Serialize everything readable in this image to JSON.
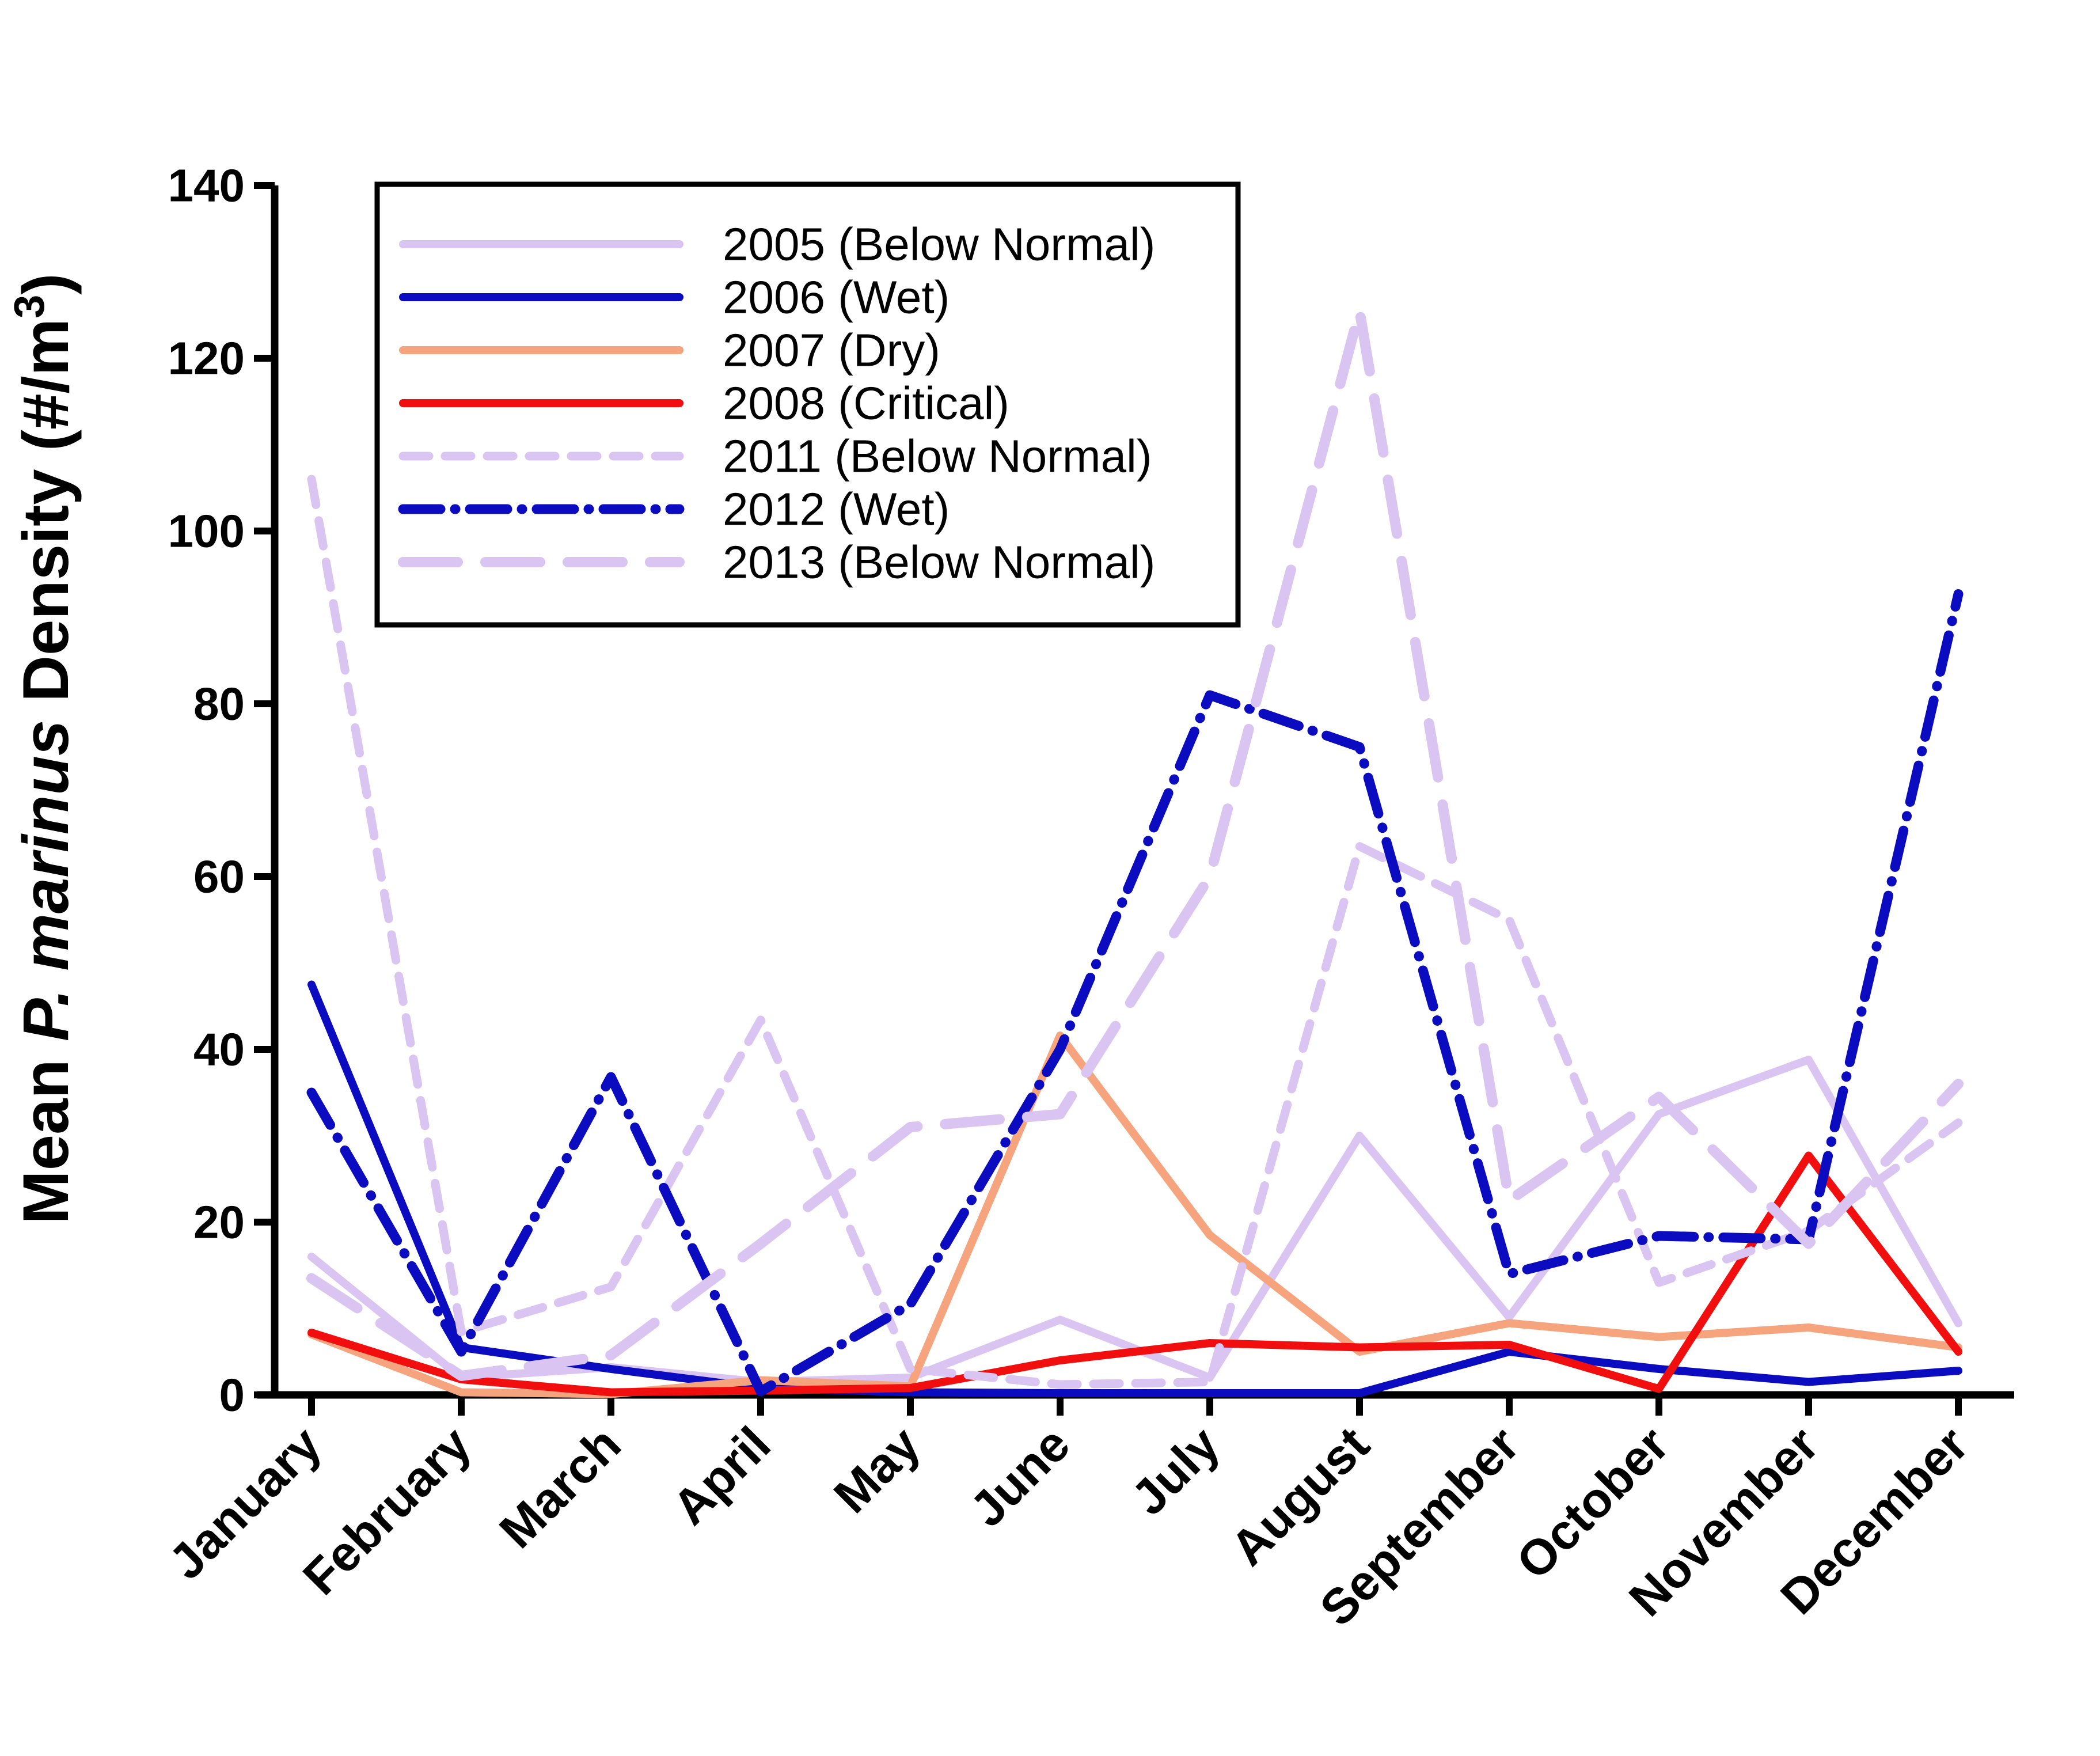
{
  "chart_data": {
    "type": "line",
    "title": "",
    "xlabel": "",
    "ylabel": "Mean P. marinus Density (#/m3)",
    "ylabel_parts": {
      "prefix": "Mean ",
      "italic_species": "P. marinus",
      "middle": " Density (#/m",
      "superscript": "3",
      "suffix": ")"
    },
    "ylim": [
      0,
      140
    ],
    "yticks": [
      0,
      20,
      40,
      60,
      80,
      100,
      120,
      140
    ],
    "grid": false,
    "legend_position": "top-left-inside",
    "background_color": "#ffffff",
    "axis_color": "#000000",
    "categories": [
      "January",
      "February",
      "March",
      "April",
      "May",
      "June",
      "July",
      "August",
      "September",
      "October",
      "November",
      "December"
    ],
    "series": [
      {
        "name": "2005",
        "label": "2005 (Below Normal)",
        "color": "#d9c4f2",
        "line_style": "solid",
        "values": [
          16,
          2,
          3.2,
          1.5,
          2,
          8.7,
          2,
          30,
          9,
          32.5,
          38.8,
          8.3
        ]
      },
      {
        "name": "2006",
        "label": "2006 (Wet)",
        "color": "#0b0bbf",
        "line_style": "solid",
        "values": [
          47.5,
          5.5,
          3,
          0.8,
          0.3,
          0.2,
          0.2,
          0.2,
          5,
          3,
          1.5,
          2.8
        ]
      },
      {
        "name": "2007",
        "label": "2007 (Dry)",
        "color": "#f5a47e",
        "line_style": "solid",
        "values": [
          7,
          0.3,
          0.1,
          1.7,
          1,
          41.6,
          18.5,
          5,
          8.3,
          6.7,
          7.8,
          5.5
        ]
      },
      {
        "name": "2008",
        "label": "2008 (Critical)",
        "color": "#f10e0e",
        "line_style": "solid",
        "values": [
          7.2,
          1.8,
          0.3,
          0.5,
          0.8,
          4,
          6,
          5.5,
          5.8,
          0.7,
          27.7,
          5
        ]
      },
      {
        "name": "2011",
        "label": "2011 (Below Normal)",
        "color": "#d9c4f2",
        "line_style": "shortdash",
        "values": [
          106,
          7.3,
          12.5,
          43.4,
          3,
          1.2,
          1.5,
          63.5,
          55,
          13,
          19,
          31.5
        ]
      },
      {
        "name": "2012",
        "label": "2012 (Wet)",
        "color": "#0b0bbf",
        "line_style": "dashdot",
        "values": [
          35,
          5,
          36.8,
          0.4,
          10.5,
          40,
          81,
          75,
          14,
          18.4,
          18,
          92.7
        ]
      },
      {
        "name": "2013",
        "label": "2013 (Below Normal)",
        "color": "#d9c4f2",
        "line_style": "longdash",
        "values": [
          13.5,
          2.2,
          4.6,
          17.5,
          31,
          32.5,
          60,
          125.5,
          22.5,
          34.5,
          17.5,
          36
        ]
      }
    ]
  }
}
